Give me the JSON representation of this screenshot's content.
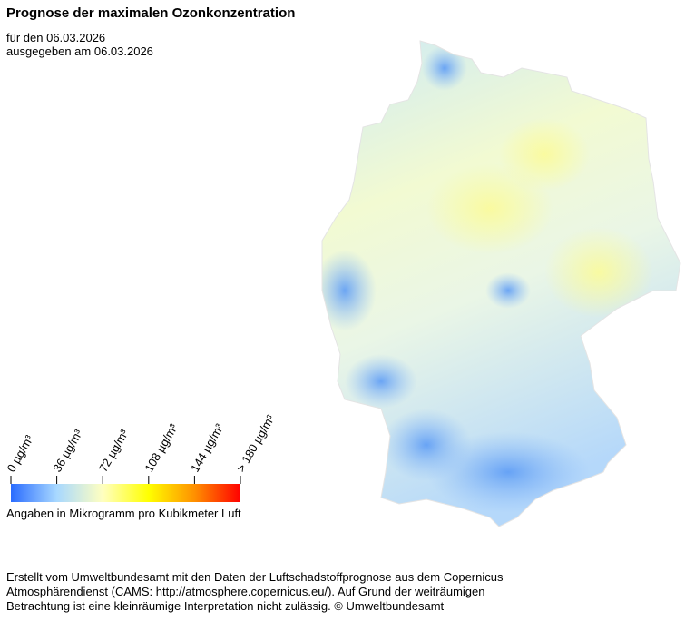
{
  "header": {
    "title": "Prognose der maximalen Ozonkonzentration",
    "lines": [
      "für den 06.03.2026",
      "ausgegeben am 06.03.2026"
    ]
  },
  "legend": {
    "range": [
      0,
      180
    ],
    "ticks": [
      {
        "value": 0,
        "label": "0  µg/m³"
      },
      {
        "value": 36,
        "label": "36  µg/m³"
      },
      {
        "value": 72,
        "label": "72  µg/m³"
      },
      {
        "value": 108,
        "label": "108  µg/m³"
      },
      {
        "value": 144,
        "label": "144  µg/m³"
      },
      {
        "value": 180,
        "label": "> 180  µg/m³"
      }
    ],
    "colors": [
      "#2a6cff",
      "#a8d8ff",
      "#ffffc0",
      "#ffff00",
      "#ff9000",
      "#ff0000"
    ],
    "note": "Angaben in Mikrogramm pro Kubikmeter Luft"
  },
  "footer": {
    "lines": [
      "Erstellt vom Umweltbundesamt mit den Daten der Luftschadstoffprognose aus dem Copernicus",
      "Atmosphärendienst (CAMS: http://atmosphere.copernicus.eu/). Auf Grund der weiträumigen",
      "Betrachtung ist eine kleinräumige Interpretation nicht zulässig. © Umweltbundesamt"
    ]
  }
}
